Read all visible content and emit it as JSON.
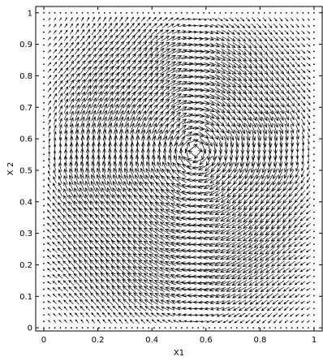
{
  "chart_data": {
    "type": "quiver",
    "title": "",
    "xlabel": "X1",
    "ylabel": "X 2",
    "xlim": [
      -0.03,
      1.03
    ],
    "ylim": [
      -0.01,
      1.02
    ],
    "x_ticks": [
      0,
      0.2,
      0.4,
      0.6,
      0.8,
      1
    ],
    "x_tick_labels": [
      "0",
      "0.2",
      "0.4",
      "0.6",
      "0.8",
      "1"
    ],
    "y_ticks": [
      0,
      0.1,
      0.2,
      0.3,
      0.4,
      0.5,
      0.6,
      0.7,
      0.8,
      0.9,
      1
    ],
    "y_tick_labels": [
      "0",
      "0.1",
      "0.2",
      "0.3",
      "0.4",
      "0.5",
      "0.6",
      "0.7",
      "0.8",
      "0.9",
      "1"
    ],
    "grid": false,
    "legend": "none",
    "field": {
      "description": "Velocity field of a single clockwise rotating vortex (lid-driven cavity style flow) on the unit square",
      "rotation": "clockwise",
      "vortex_center": [
        0.56,
        0.56
      ],
      "grid_x_from": 0,
      "grid_x_to": 1,
      "grid_y_from": 0,
      "grid_y_to": 1,
      "grid_step": 0.0204
    },
    "colors": {
      "arrow": "#000000",
      "axes": "#000000",
      "background": "#ffffff"
    }
  }
}
